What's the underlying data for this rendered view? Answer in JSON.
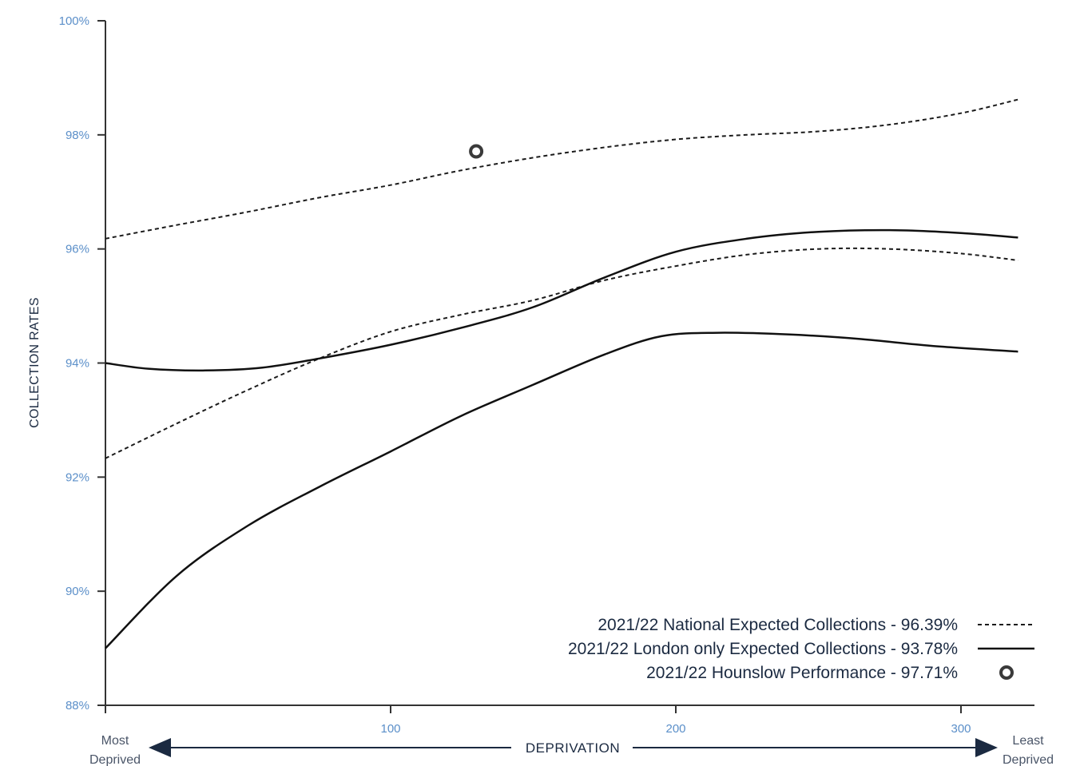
{
  "chart_data": {
    "type": "line",
    "xlabel": "DEPRIVATION",
    "ylabel": "COLLECTION RATES",
    "x_end_labels": {
      "left": [
        "Most",
        "Deprived"
      ],
      "right": [
        "Least",
        "Deprived"
      ]
    },
    "xlim": [
      0,
      325
    ],
    "ylim": [
      88,
      100
    ],
    "x_ticks": [
      100,
      200,
      300
    ],
    "x_tick_labels": [
      "100",
      "200",
      "300"
    ],
    "y_ticks": [
      88,
      90,
      92,
      94,
      96,
      98,
      100
    ],
    "y_tick_labels": [
      "88%",
      "90%",
      "92%",
      "94%",
      "96%",
      "98%",
      "100%"
    ],
    "grid": false,
    "legend_position": "bottom-right",
    "series": [
      {
        "name": "2021/22 National Expected Collections - 96.39%",
        "style": "dashed",
        "color": "#1b1b1b",
        "points": [
          [
            0,
            96.18
          ],
          [
            25,
            96.42
          ],
          [
            50,
            96.65
          ],
          [
            75,
            96.9
          ],
          [
            100,
            97.12
          ],
          [
            125,
            97.38
          ],
          [
            150,
            97.6
          ],
          [
            175,
            97.78
          ],
          [
            200,
            97.92
          ],
          [
            225,
            98.0
          ],
          [
            250,
            98.06
          ],
          [
            275,
            98.18
          ],
          [
            300,
            98.38
          ],
          [
            320,
            98.62
          ]
        ]
      },
      {
        "name": "",
        "style": "dashed",
        "color": "#1b1b1b",
        "points": [
          [
            0,
            92.33
          ],
          [
            25,
            92.94
          ],
          [
            50,
            93.53
          ],
          [
            75,
            94.08
          ],
          [
            100,
            94.55
          ],
          [
            125,
            94.85
          ],
          [
            150,
            95.1
          ],
          [
            175,
            95.45
          ],
          [
            200,
            95.7
          ],
          [
            225,
            95.9
          ],
          [
            250,
            96.0
          ],
          [
            275,
            96.0
          ],
          [
            300,
            95.92
          ],
          [
            320,
            95.8
          ]
        ]
      },
      {
        "name": "2021/22 London only Expected Collections - 93.78%",
        "style": "solid",
        "color": "#111111",
        "points": [
          [
            0,
            94.0
          ],
          [
            15,
            93.9
          ],
          [
            35,
            93.87
          ],
          [
            55,
            93.92
          ],
          [
            75,
            94.08
          ],
          [
            100,
            94.32
          ],
          [
            125,
            94.62
          ],
          [
            150,
            94.98
          ],
          [
            175,
            95.5
          ],
          [
            200,
            95.95
          ],
          [
            225,
            96.18
          ],
          [
            250,
            96.3
          ],
          [
            275,
            96.33
          ],
          [
            300,
            96.28
          ],
          [
            320,
            96.2
          ]
        ]
      },
      {
        "name": "",
        "style": "solid",
        "color": "#111111",
        "points": [
          [
            0,
            89.0
          ],
          [
            25,
            90.27
          ],
          [
            50,
            91.15
          ],
          [
            75,
            91.83
          ],
          [
            100,
            92.45
          ],
          [
            125,
            93.08
          ],
          [
            150,
            93.62
          ],
          [
            175,
            94.15
          ],
          [
            195,
            94.47
          ],
          [
            215,
            94.53
          ],
          [
            240,
            94.5
          ],
          [
            265,
            94.42
          ],
          [
            290,
            94.3
          ],
          [
            320,
            94.2
          ]
        ]
      },
      {
        "name": "2021/22 Hounslow Performance - 97.71%",
        "style": "marker",
        "color": "#3a3a3a",
        "points": [
          [
            130,
            97.71
          ]
        ]
      }
    ],
    "legend": [
      {
        "label": "2021/22 National Expected Collections - 96.39%",
        "style": "dashed"
      },
      {
        "label": "2021/22 London only Expected Collections - 93.78%",
        "style": "solid"
      },
      {
        "label": "2021/22 Hounslow Performance - 97.71%",
        "style": "marker"
      }
    ]
  }
}
